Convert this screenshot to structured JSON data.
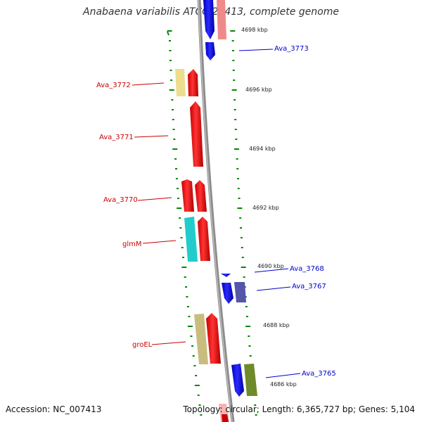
{
  "title": "Anabaena variabilis ATCC 29413, complete genome",
  "footer": {
    "accession": "Accession: NC_007413",
    "topology": "Topology: circular; Length: 6,365,727 bp; Genes: 5,104"
  },
  "colors": {
    "forward_label": "#cc0000",
    "reverse_label": "#0000cc",
    "backbone": "#888888",
    "ticks": "#008800"
  },
  "positions": [
    "4698 kbp",
    "4696 kbp",
    "4694 kbp",
    "4692 kbp",
    "4690 kbp",
    "4688 kbp",
    "4686 kbp"
  ],
  "gene_labels": [
    "Ava_3773",
    "Ava_3772",
    "Ava_3771",
    "Ava_3770",
    "glmM",
    "Ava_3768",
    "Ava_3767",
    "groEL",
    "Ava_3765"
  ]
}
